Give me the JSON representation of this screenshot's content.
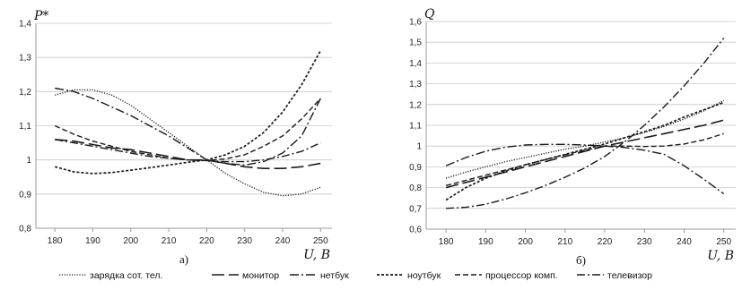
{
  "chart_data": [
    {
      "type": "line",
      "panel_label": "а)",
      "ylabel": "P*",
      "xlabel": "U, B",
      "xlim": [
        175,
        253
      ],
      "ylim": [
        0.8,
        1.4
      ],
      "x_ticks": [
        180,
        190,
        200,
        210,
        220,
        230,
        240,
        250
      ],
      "y_ticks": [
        0.8,
        0.9,
        1.0,
        1.1,
        1.2,
        1.3,
        1.4
      ],
      "x_tick_labels": [
        "180",
        "190",
        "200",
        "210",
        "220",
        "230",
        "240",
        "250"
      ],
      "y_tick_labels": [
        "0,8",
        "0,9",
        "1",
        "1,1",
        "1,2",
        "1,3",
        "1,4"
      ],
      "grid": true,
      "series": [
        {
          "name": "зарядка сот. тел.",
          "x": [
            180,
            185,
            190,
            195,
            200,
            205,
            210,
            215,
            220,
            225,
            230,
            235,
            240,
            245,
            250
          ],
          "values": [
            1.19,
            1.205,
            1.205,
            1.19,
            1.16,
            1.12,
            1.08,
            1.04,
            1.0,
            0.96,
            0.93,
            0.905,
            0.895,
            0.9,
            0.92
          ]
        },
        {
          "name": "монитор",
          "x": [
            180,
            185,
            190,
            195,
            200,
            205,
            210,
            215,
            220,
            225,
            230,
            235,
            240,
            245,
            250
          ],
          "values": [
            1.06,
            1.055,
            1.045,
            1.035,
            1.03,
            1.02,
            1.01,
            1.0,
            1.0,
            0.99,
            0.98,
            0.975,
            0.975,
            0.98,
            0.99
          ]
        },
        {
          "name": "нетбук",
          "x": [
            180,
            185,
            190,
            195,
            200,
            205,
            210,
            215,
            220,
            225,
            230,
            235,
            240,
            245,
            250
          ],
          "values": [
            1.21,
            1.2,
            1.18,
            1.155,
            1.13,
            1.1,
            1.07,
            1.035,
            1.0,
            0.99,
            0.985,
            0.995,
            1.02,
            1.07,
            1.18
          ]
        },
        {
          "name": "ноутбук",
          "x": [
            180,
            185,
            190,
            195,
            200,
            205,
            210,
            215,
            220,
            225,
            230,
            235,
            240,
            245,
            250
          ],
          "values": [
            0.98,
            0.965,
            0.96,
            0.963,
            0.97,
            0.977,
            0.985,
            0.993,
            1.0,
            1.015,
            1.04,
            1.08,
            1.14,
            1.22,
            1.32
          ]
        },
        {
          "name": "процессор комп.",
          "x": [
            180,
            185,
            190,
            195,
            200,
            205,
            210,
            215,
            220,
            225,
            230,
            235,
            240,
            245,
            250
          ],
          "values": [
            1.1,
            1.075,
            1.055,
            1.04,
            1.025,
            1.015,
            1.005,
            1.0,
            0.998,
            1.003,
            1.015,
            1.04,
            1.07,
            1.12,
            1.18
          ]
        },
        {
          "name": "телевизор",
          "x": [
            180,
            185,
            190,
            195,
            200,
            205,
            210,
            215,
            220,
            225,
            230,
            235,
            240,
            245,
            250
          ],
          "values": [
            1.06,
            1.05,
            1.04,
            1.03,
            1.02,
            1.01,
            1.005,
            1.0,
            0.998,
            0.995,
            0.995,
            1.0,
            1.01,
            1.025,
            1.05
          ]
        }
      ]
    },
    {
      "type": "line",
      "panel_label": "б)",
      "ylabel": "Q",
      "xlabel": "U, B",
      "xlim": [
        175,
        253
      ],
      "ylim": [
        0.6,
        1.6
      ],
      "x_ticks": [
        180,
        190,
        200,
        210,
        220,
        230,
        240,
        250
      ],
      "y_ticks": [
        0.6,
        0.7,
        0.8,
        0.9,
        1.0,
        1.1,
        1.2,
        1.3,
        1.4,
        1.5,
        1.6
      ],
      "x_tick_labels": [
        "180",
        "190",
        "200",
        "210",
        "220",
        "230",
        "240",
        "250"
      ],
      "y_tick_labels": [
        "0,6",
        "0,7",
        "0,8",
        "0,9",
        "1",
        "1,1",
        "1,2",
        "1,3",
        "1,4",
        "1,5",
        "1,6"
      ],
      "grid": true,
      "series": [
        {
          "name": "зарядка сот. тел.",
          "x": [
            180,
            185,
            190,
            195,
            200,
            205,
            210,
            215,
            220,
            225,
            230,
            235,
            240,
            245,
            250
          ],
          "values": [
            0.845,
            0.875,
            0.9,
            0.925,
            0.945,
            0.965,
            0.985,
            1.0,
            1.02,
            1.04,
            1.065,
            1.095,
            1.13,
            1.17,
            1.22
          ]
        },
        {
          "name": "монитор",
          "x": [
            180,
            185,
            190,
            195,
            200,
            205,
            210,
            215,
            220,
            225,
            230,
            235,
            240,
            245,
            250
          ],
          "values": [
            0.8,
            0.825,
            0.85,
            0.875,
            0.9,
            0.925,
            0.95,
            0.975,
            1.0,
            1.02,
            1.04,
            1.06,
            1.08,
            1.1,
            1.125
          ]
        },
        {
          "name": "нетбук",
          "x": [
            180,
            185,
            190,
            195,
            200,
            205,
            210,
            215,
            220,
            225,
            230,
            235,
            240,
            245,
            250
          ],
          "values": [
            0.905,
            0.945,
            0.975,
            0.995,
            1.005,
            1.008,
            1.008,
            1.005,
            1.0,
            0.993,
            0.98,
            0.96,
            0.905,
            0.84,
            0.77
          ]
        },
        {
          "name": "ноутбук",
          "x": [
            180,
            185,
            190,
            195,
            200,
            205,
            210,
            215,
            220,
            225,
            230,
            235,
            240,
            245,
            250
          ],
          "values": [
            0.74,
            0.8,
            0.845,
            0.88,
            0.91,
            0.935,
            0.96,
            0.985,
            1.01,
            1.04,
            1.07,
            1.1,
            1.14,
            1.175,
            1.21
          ]
        },
        {
          "name": "процессор комп.",
          "x": [
            180,
            185,
            190,
            195,
            200,
            205,
            210,
            215,
            220,
            225,
            230,
            235,
            240,
            245,
            250
          ],
          "values": [
            0.81,
            0.835,
            0.86,
            0.885,
            0.91,
            0.935,
            0.958,
            0.98,
            1.0,
            1.0,
            0.998,
            1.0,
            1.01,
            1.03,
            1.06
          ]
        },
        {
          "name": "телевизор",
          "x": [
            180,
            185,
            190,
            195,
            200,
            205,
            210,
            215,
            220,
            225,
            230,
            235,
            240,
            245,
            250
          ],
          "values": [
            0.7,
            0.705,
            0.72,
            0.745,
            0.775,
            0.81,
            0.85,
            0.895,
            0.95,
            1.02,
            1.1,
            1.19,
            1.29,
            1.4,
            1.52
          ]
        }
      ]
    }
  ],
  "legend": {
    "placement": "bottom",
    "entries": [
      "зарядка сот. тел.",
      "монитор",
      "нетбук",
      "ноутбук",
      "процессор комп.",
      "телевизор"
    ]
  },
  "styles": {
    "line_color": "#1a1a1a",
    "grid_color": "#c8c8c8",
    "axis_color": "#9a9a9a"
  }
}
